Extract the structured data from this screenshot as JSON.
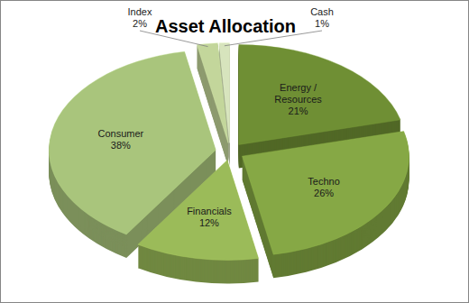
{
  "chart_data": {
    "type": "pie",
    "title": "Asset Allocation",
    "categories": [
      "Energy / Resources",
      "Techno",
      "Financials",
      "Consumer",
      "Index",
      "Cash"
    ],
    "values": [
      21,
      26,
      12,
      38,
      2,
      1
    ],
    "value_labels": [
      "21%",
      "26%",
      "12%",
      "38%",
      "2%",
      "1%"
    ],
    "colors": [
      "#6f8f34",
      "#86a845",
      "#9bbb59",
      "#a9c57c",
      "#c3d69b",
      "#d7e4bd"
    ],
    "data_labels": true
  }
}
